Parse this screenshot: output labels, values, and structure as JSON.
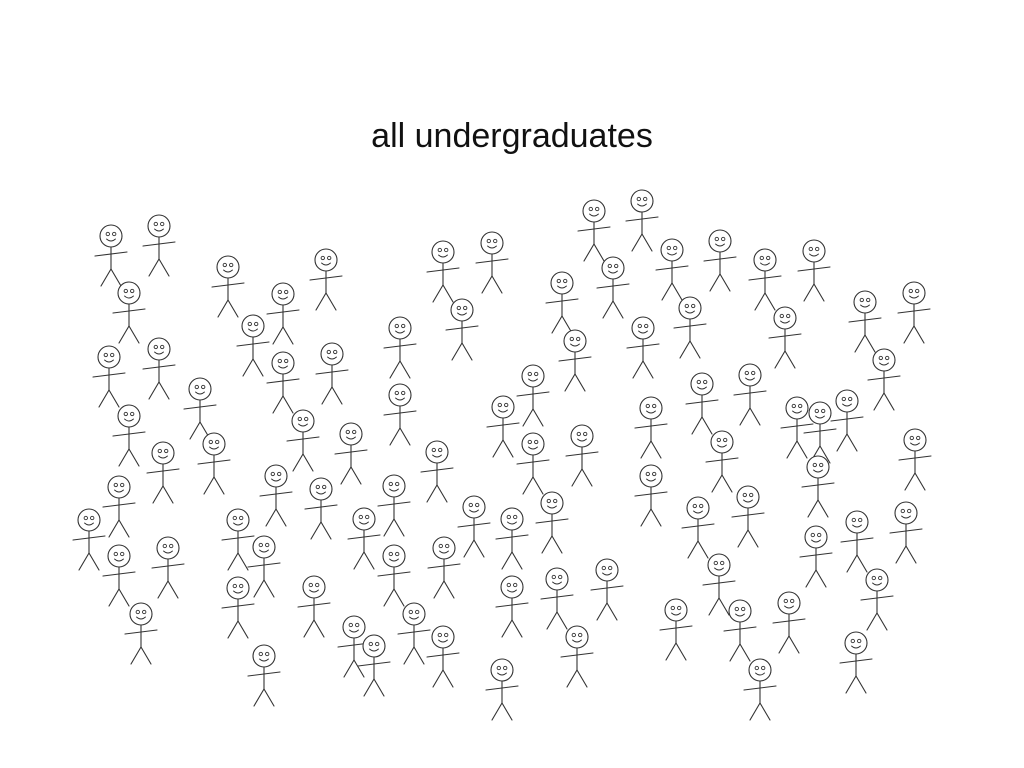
{
  "slide": {
    "title": "all undergraduates"
  },
  "figure": {
    "icon": "stick-figure-icon",
    "count": 100,
    "stroke_color": "#333333"
  }
}
